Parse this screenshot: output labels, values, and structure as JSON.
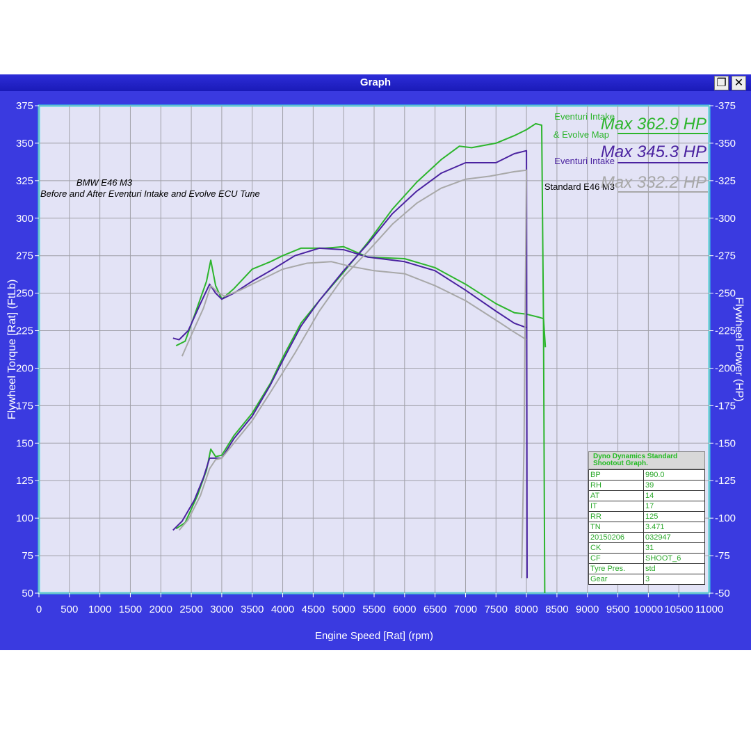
{
  "window": {
    "title": "Graph",
    "restore_icon": "restore-window-icon",
    "close_icon": "close-icon"
  },
  "colors": {
    "window_bg": "#3a3ae0",
    "plot_bg": "#e3e3f6",
    "plot_border": "#33e0ec",
    "grid": "#a0a0a8",
    "axis_text": "#ffffff",
    "eventuri_evolve": "#2cb52c",
    "eventuri": "#4a22a0",
    "standard": "#a8a8a8"
  },
  "chart_data": {
    "type": "line",
    "title": "BMW E46 M3",
    "subtitle": "Before and After Eventuri Intake and Evolve ECU Tune",
    "xlabel": "Engine Speed [Rat] (rpm)",
    "ylabel_left": "Flywheel Torque [Rat] (FtLb)",
    "ylabel_right": "Flywheel Power (HP)",
    "xlim": [
      0,
      11000
    ],
    "ylim": [
      50,
      375
    ],
    "xticks": [
      0,
      500,
      1000,
      1500,
      2000,
      2500,
      3000,
      3500,
      4000,
      4500,
      5000,
      5500,
      6000,
      6500,
      7000,
      7500,
      8000,
      8500,
      9000,
      9500,
      10000,
      10500,
      11000
    ],
    "yticks": [
      50,
      75,
      100,
      125,
      150,
      175,
      200,
      225,
      250,
      275,
      300,
      325,
      350,
      375
    ],
    "grid": true,
    "legend": [
      {
        "name": "Eventuri Intake & Evolve Map",
        "max": "Max 362.9 HP",
        "color": "#2cb52c"
      },
      {
        "name": "Eventuri Intake",
        "max": "Max 345.3 HP",
        "color": "#4a22a0"
      },
      {
        "name": "Standard E46 M3",
        "max": "Max 332.2 HP",
        "color": "#a8a8a8"
      }
    ],
    "series": [
      {
        "name": "Eventuri Intake & Evolve Map",
        "kind": "power",
        "color": "#2cb52c",
        "x": [
          2250,
          2400,
          2600,
          2750,
          2820,
          2900,
          3000,
          3200,
          3500,
          3800,
          4000,
          4300,
          4600,
          5000,
          5400,
          5800,
          6200,
          6600,
          6900,
          7100,
          7500,
          7800,
          8000,
          8150,
          8250,
          8280,
          8300
        ],
        "y": [
          93,
          97,
          115,
          132,
          146,
          141,
          142,
          155,
          170,
          190,
          207,
          230,
          245,
          264,
          284,
          306,
          324,
          339,
          348,
          347,
          350,
          355,
          359,
          363,
          362,
          230,
          50
        ]
      },
      {
        "name": "Eventuri Intake & Evolve Map",
        "kind": "torque",
        "color": "#2cb52c",
        "x": [
          2250,
          2400,
          2550,
          2750,
          2820,
          2900,
          3000,
          3200,
          3500,
          3800,
          4000,
          4300,
          4700,
          5000,
          5400,
          6000,
          6500,
          7000,
          7500,
          7800,
          8000,
          8200,
          8280,
          8310
        ],
        "y": [
          215,
          218,
          235,
          258,
          272,
          255,
          246,
          253,
          266,
          271,
          275,
          280,
          280,
          281,
          274,
          273,
          267,
          256,
          243,
          237,
          236,
          234,
          233,
          214
        ]
      },
      {
        "name": "Eventuri Intake",
        "kind": "power",
        "color": "#4a22a0",
        "x": [
          2200,
          2350,
          2550,
          2700,
          2800,
          2900,
          3000,
          3200,
          3500,
          3800,
          4000,
          4300,
          4600,
          5000,
          5400,
          5800,
          6200,
          6600,
          7000,
          7300,
          7500,
          7800,
          8000,
          8010
        ],
        "y": [
          92,
          98,
          112,
          127,
          140,
          140,
          140,
          153,
          168,
          189,
          205,
          228,
          245,
          265,
          283,
          303,
          318,
          330,
          337,
          337,
          337,
          343,
          345,
          60
        ]
      },
      {
        "name": "Eventuri Intake",
        "kind": "torque",
        "color": "#4a22a0",
        "x": [
          2200,
          2300,
          2450,
          2650,
          2800,
          2900,
          3000,
          3200,
          3500,
          3800,
          4200,
          4600,
          5000,
          5400,
          6000,
          6500,
          7000,
          7500,
          7800,
          8000
        ],
        "y": [
          220,
          219,
          225,
          243,
          256,
          250,
          246,
          250,
          258,
          265,
          275,
          280,
          279,
          274,
          271,
          265,
          252,
          238,
          230,
          227
        ]
      },
      {
        "name": "Standard E46 M3",
        "kind": "power",
        "color": "#a8a8a8",
        "x": [
          2300,
          2450,
          2650,
          2800,
          2900,
          3000,
          3200,
          3500,
          3800,
          4200,
          4600,
          5000,
          5400,
          5800,
          6200,
          6600,
          7000,
          7400,
          7800,
          8000,
          7960,
          7920
        ],
        "y": [
          92,
          99,
          115,
          133,
          139,
          140,
          150,
          165,
          184,
          210,
          238,
          261,
          278,
          296,
          310,
          320,
          326,
          328,
          331,
          332,
          150,
          60
        ]
      },
      {
        "name": "Standard E46 M3",
        "kind": "torque",
        "color": "#a8a8a8",
        "x": [
          2350,
          2500,
          2700,
          2820,
          2950,
          3050,
          3300,
          3700,
          4000,
          4400,
          4800,
          5100,
          5500,
          6000,
          6500,
          7000,
          7500,
          7800,
          8000
        ],
        "y": [
          208,
          222,
          240,
          255,
          250,
          248,
          252,
          260,
          266,
          270,
          271,
          268,
          265,
          263,
          255,
          245,
          232,
          224,
          219
        ]
      }
    ]
  },
  "info_box": {
    "header": "Dyno Dynamics Standard Shootout Graph.",
    "rows": [
      [
        "BP",
        "990.0"
      ],
      [
        "RH",
        "39"
      ],
      [
        "AT",
        "14"
      ],
      [
        "IT",
        "17"
      ],
      [
        "RR",
        "125"
      ],
      [
        "TN",
        "3.471"
      ],
      [
        "20150206",
        "032947"
      ],
      [
        "CK",
        "31"
      ],
      [
        "CF",
        "SHOOT_6"
      ],
      [
        "Tyre Pres.",
        "std"
      ],
      [
        "Gear",
        "3"
      ]
    ]
  }
}
